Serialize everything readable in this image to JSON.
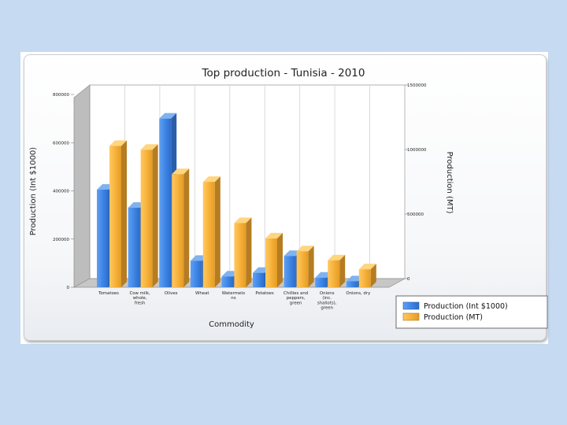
{
  "chart_data": {
    "type": "bar",
    "title": "Top production - Tunisia - 2010",
    "xlabel": "Commodity",
    "ylabel_left": "Production (Int $1000)",
    "ylabel_right": "Production (MT)",
    "categories": [
      [
        "Tomatoes"
      ],
      [
        "Cow milk,",
        "whole,",
        "fresh"
      ],
      [
        "Olives"
      ],
      [
        "Wheat"
      ],
      [
        "Watermelo",
        "ns"
      ],
      [
        "Potatoes"
      ],
      [
        "Chillies and",
        "peppers,",
        "green"
      ],
      [
        "Onions",
        "(inc.",
        "shallots),",
        "green"
      ],
      [
        "Onions, dry"
      ]
    ],
    "series": [
      {
        "name": "Production (Int $1000)",
        "axis": "left",
        "color": "#3f86e6",
        "values": [
          405000,
          330000,
          700000,
          110000,
          45000,
          60000,
          130000,
          40000,
          25000
        ]
      },
      {
        "name": "Production (MT)",
        "axis": "right",
        "color": "#f7b23b",
        "values": [
          1100000,
          1070000,
          880000,
          820000,
          500000,
          380000,
          280000,
          210000,
          140000
        ]
      }
    ],
    "ylim_left": [
      0,
      800000
    ],
    "ylim_right": [
      0,
      1500000
    ],
    "yticks_left": [
      "0",
      "200000",
      "400000",
      "600000",
      "800000"
    ],
    "yticks_right": [
      "0",
      "500000",
      "1000000",
      "1500000"
    ],
    "chart_style": "3d-clustered-bar",
    "grid": "vertical",
    "legend_position": "bottom-right"
  }
}
